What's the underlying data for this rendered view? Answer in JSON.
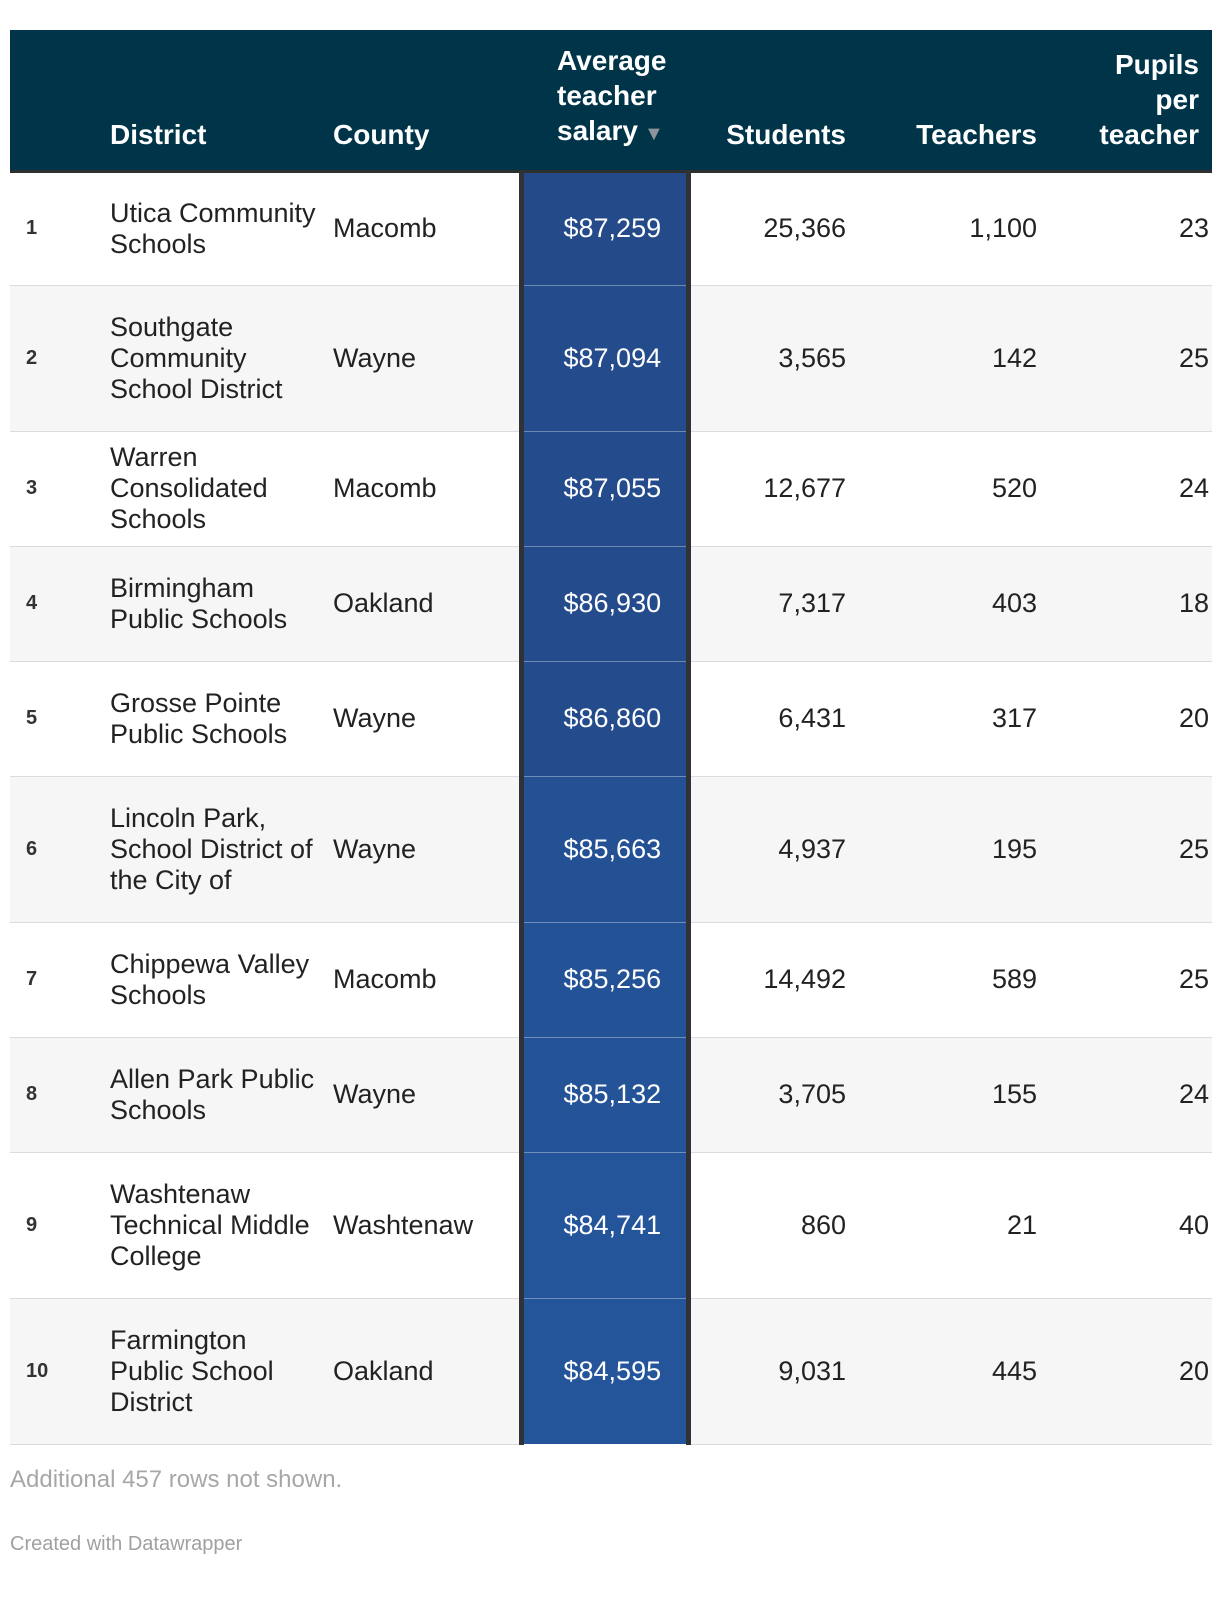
{
  "chart_data": {
    "type": "table",
    "columns": [
      "",
      "District",
      "County",
      "Average teacher salary",
      "Students",
      "Teachers",
      "Pupils per teacher"
    ],
    "sort_column": "Average teacher salary",
    "sort_order": "descending",
    "rows": [
      {
        "rank": "1",
        "district": "Utica Community Schools",
        "county": "Macomb",
        "salary": "$87,259",
        "salary_value": 87259,
        "students": "25,366",
        "teachers": "1,100",
        "ppt": "23"
      },
      {
        "rank": "2",
        "district": "Southgate Community School District",
        "county": "Wayne",
        "salary": "$87,094",
        "salary_value": 87094,
        "students": "3,565",
        "teachers": "142",
        "ppt": "25"
      },
      {
        "rank": "3",
        "district": "Warren Consolidated Schools",
        "county": "Macomb",
        "salary": "$87,055",
        "salary_value": 87055,
        "students": "12,677",
        "teachers": "520",
        "ppt": "24"
      },
      {
        "rank": "4",
        "district": "Birmingham Public Schools",
        "county": "Oakland",
        "salary": "$86,930",
        "salary_value": 86930,
        "students": "7,317",
        "teachers": "403",
        "ppt": "18"
      },
      {
        "rank": "5",
        "district": "Grosse Pointe Public Schools",
        "county": "Wayne",
        "salary": "$86,860",
        "salary_value": 86860,
        "students": "6,431",
        "teachers": "317",
        "ppt": "20"
      },
      {
        "rank": "6",
        "district": "Lincoln Park, School District of the City of",
        "county": "Wayne",
        "salary": "$85,663",
        "salary_value": 85663,
        "students": "4,937",
        "teachers": "195",
        "ppt": "25"
      },
      {
        "rank": "7",
        "district": "Chippewa Valley Schools",
        "county": "Macomb",
        "salary": "$85,256",
        "salary_value": 85256,
        "students": "14,492",
        "teachers": "589",
        "ppt": "25"
      },
      {
        "rank": "8",
        "district": "Allen Park Public Schools",
        "county": "Wayne",
        "salary": "$85,132",
        "salary_value": 85132,
        "students": "3,705",
        "teachers": "155",
        "ppt": "24"
      },
      {
        "rank": "9",
        "district": "Washtenaw Technical Middle College",
        "county": "Washtenaw",
        "salary": "$84,741",
        "salary_value": 84741,
        "students": "860",
        "teachers": "21",
        "ppt": "40"
      },
      {
        "rank": "10",
        "district": "Farmington Public School District",
        "county": "Oakland",
        "salary": "$84,595",
        "salary_value": 84595,
        "students": "9,031",
        "teachers": "445",
        "ppt": "20"
      }
    ]
  },
  "headers": {
    "district": "District",
    "county": "County",
    "salary": "Average teacher salary",
    "students": "Students",
    "teachers": "Teachers",
    "ppt": "Pupils per teacher"
  },
  "colors": {
    "header_bg": "#003449",
    "salary_dark": "#244a8a",
    "salary_light": "#24559a"
  },
  "icons": {
    "sort": "sort-descending-icon"
  },
  "footer": {
    "note": "Additional 457 rows not shown.",
    "credit": "Created with Datawrapper"
  }
}
